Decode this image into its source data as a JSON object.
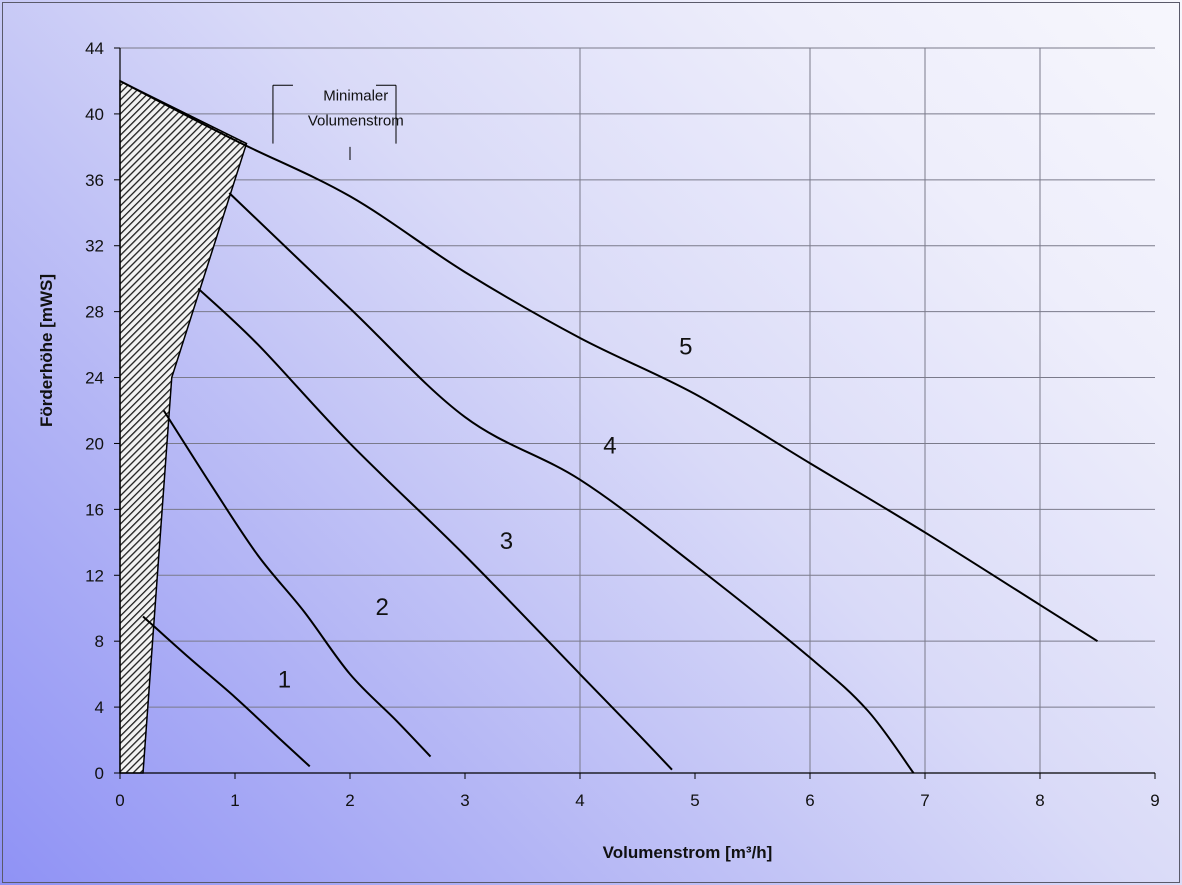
{
  "chart_data": {
    "type": "line",
    "title": "",
    "xlabel": "Volumenstrom [m³/h]",
    "ylabel": "Förderhöhe [mWS]",
    "xlim": [
      0,
      9
    ],
    "ylim": [
      0,
      44
    ],
    "x_ticks": [
      0,
      1,
      2,
      3,
      4,
      5,
      6,
      7,
      8,
      9
    ],
    "y_ticks": [
      0,
      4,
      8,
      12,
      16,
      20,
      24,
      28,
      32,
      36,
      40,
      44
    ],
    "grid": true,
    "legend": "none",
    "series": [
      {
        "name": "1",
        "points": [
          [
            0.2,
            9.5
          ],
          [
            0.6,
            7.0
          ],
          [
            1.0,
            4.6
          ],
          [
            1.4,
            2.0
          ],
          [
            1.65,
            0.4
          ]
        ]
      },
      {
        "name": "2",
        "points": [
          [
            0.38,
            22.0
          ],
          [
            0.8,
            17.4
          ],
          [
            1.2,
            13.2
          ],
          [
            1.6,
            9.8
          ],
          [
            2.0,
            6.0
          ],
          [
            2.4,
            3.2
          ],
          [
            2.7,
            1.0
          ]
        ]
      },
      {
        "name": "3",
        "points": [
          [
            0.68,
            29.4
          ],
          [
            1.2,
            26.0
          ],
          [
            2.0,
            20.0
          ],
          [
            3.0,
            13.2
          ],
          [
            4.0,
            6.0
          ],
          [
            4.5,
            2.4
          ],
          [
            4.8,
            0.2
          ]
        ]
      },
      {
        "name": "4",
        "points": [
          [
            0.95,
            35.2
          ],
          [
            2.0,
            28.2
          ],
          [
            3.0,
            21.6
          ],
          [
            4.0,
            17.8
          ],
          [
            5.0,
            12.6
          ],
          [
            6.0,
            7.0
          ],
          [
            6.5,
            3.8
          ],
          [
            6.9,
            0.0
          ]
        ]
      },
      {
        "name": "5",
        "points": [
          [
            0.0,
            42.0
          ],
          [
            1.0,
            38.4
          ],
          [
            2.0,
            35.0
          ],
          [
            3.0,
            30.4
          ],
          [
            4.0,
            26.4
          ],
          [
            5.0,
            23.0
          ],
          [
            6.0,
            18.8
          ],
          [
            7.0,
            14.6
          ],
          [
            8.0,
            10.2
          ],
          [
            8.5,
            8.0
          ]
        ]
      }
    ],
    "minimal_flow_region": [
      [
        0.0,
        0.0
      ],
      [
        0.2,
        0.0
      ],
      [
        0.45,
        24.0
      ],
      [
        1.1,
        38.2
      ],
      [
        0.0,
        42.0
      ]
    ],
    "annotations": [
      {
        "text": "Minimaler",
        "x": 2.05,
        "y": 40.8
      },
      {
        "text": "Volumenstrom",
        "x": 2.05,
        "y": 39.3
      }
    ],
    "series_labels": [
      {
        "text": "1",
        "x": 1.43,
        "y": 5.2
      },
      {
        "text": "2",
        "x": 2.28,
        "y": 9.6
      },
      {
        "text": "3",
        "x": 3.36,
        "y": 13.6
      },
      {
        "text": "4",
        "x": 4.26,
        "y": 19.4
      },
      {
        "text": "5",
        "x": 4.92,
        "y": 25.4
      }
    ]
  },
  "colors": {
    "line": "#000000",
    "grid": "#7a7a8a",
    "hatch": "#222222"
  }
}
